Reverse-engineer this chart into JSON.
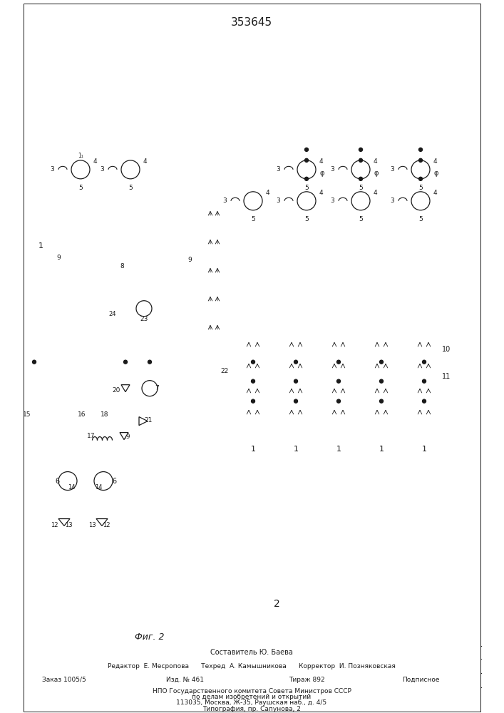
{
  "title": "353645",
  "fig_label": "Фиг. 2",
  "bg_color": "#ffffff",
  "line_color": "#1a1a1a",
  "composer_line": "Составитель Ю. Баева",
  "editor_line": "Редактор  Е. Месропова      Техред  А. Камышникова      Корректор  И. Позняковская",
  "order_col1": "Заказ 1005/5",
  "order_col2": "Изд. № 461",
  "order_col3": "Тираж 892",
  "order_col4": "Подписное",
  "npo_line1": "НПО Государственного комитета Совета Министров СССР",
  "npo_line2": "по делам изобретений и открытий",
  "npo_line3": "113035, Москва, Ж-35, Раушская наб., д. 4/5",
  "print_line": "Типография, пр. Сапунова, 2"
}
